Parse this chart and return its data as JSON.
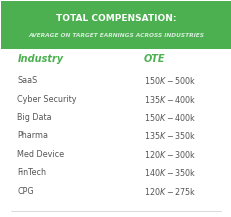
{
  "title_line1": "TOTAL COMPENSATION:",
  "title_line2": "AVERAGE ON TARGET EARNINGS ACROSS INDUSTRIES",
  "header_industry": "Industry",
  "header_ote": "OTE",
  "industries": [
    "SaaS",
    "Cyber Security",
    "Big Data",
    "Pharma",
    "Med Device",
    "FinTech",
    "CPG"
  ],
  "ote_values": [
    "$150K - $500k",
    "$135K - $400k",
    "$150K - $400k",
    "$135K - $350k",
    "$120K - $300k",
    "$140K - $350k",
    "$120K - $275k"
  ],
  "header_bg_color": "#4caf50",
  "header_text_color": "#ffffff",
  "header_subtitle_color": "#d4edda",
  "col_header_color": "#4caf50",
  "row_text_color": "#555555",
  "bg_color": "#ffffff",
  "figsize": [
    2.32,
    2.17
  ],
  "dpi": 100
}
